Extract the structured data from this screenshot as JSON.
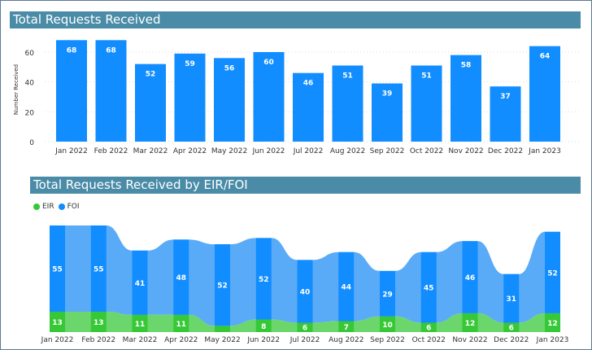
{
  "chart_data": [
    {
      "type": "bar",
      "title": "Total Requests Received",
      "ylabel": "Number Received",
      "xlabel": "",
      "ylim": [
        0,
        70
      ],
      "yticks": [
        0,
        20,
        40,
        60
      ],
      "grid": true,
      "categories": [
        "Jan 2022",
        "Feb 2022",
        "Mar 2022",
        "Apr 2022",
        "May 2022",
        "Jun 2022",
        "Jul 2022",
        "Aug 2022",
        "Sep 2022",
        "Oct 2022",
        "Nov 2022",
        "Dec 2022",
        "Jan 2023"
      ],
      "values": [
        68,
        68,
        52,
        59,
        56,
        60,
        46,
        51,
        39,
        51,
        58,
        37,
        64
      ],
      "color": "#118dff"
    },
    {
      "type": "ribbon",
      "title": "Total Requests Received by EIR/FOI",
      "legend_position": "top-left",
      "categories": [
        "Jan 2022",
        "Feb 2022",
        "Mar 2022",
        "Apr 2022",
        "May 2022",
        "Jun 2022",
        "Jul 2022",
        "Aug 2022",
        "Sep 2022",
        "Oct 2022",
        "Nov 2022",
        "Dec 2022",
        "Jan 2023"
      ],
      "series": [
        {
          "name": "EIR",
          "values": [
            13,
            13,
            11,
            11,
            4,
            8,
            6,
            7,
            10,
            6,
            12,
            6,
            12
          ],
          "color": "#37c837",
          "ribbon_color": "#6bd66b",
          "show_label_min": 5
        },
        {
          "name": "FOI",
          "values": [
            55,
            55,
            41,
            48,
            52,
            52,
            40,
            44,
            29,
            45,
            46,
            31,
            52
          ],
          "color": "#118dff",
          "ribbon_color": "#5aabf7"
        }
      ]
    }
  ]
}
